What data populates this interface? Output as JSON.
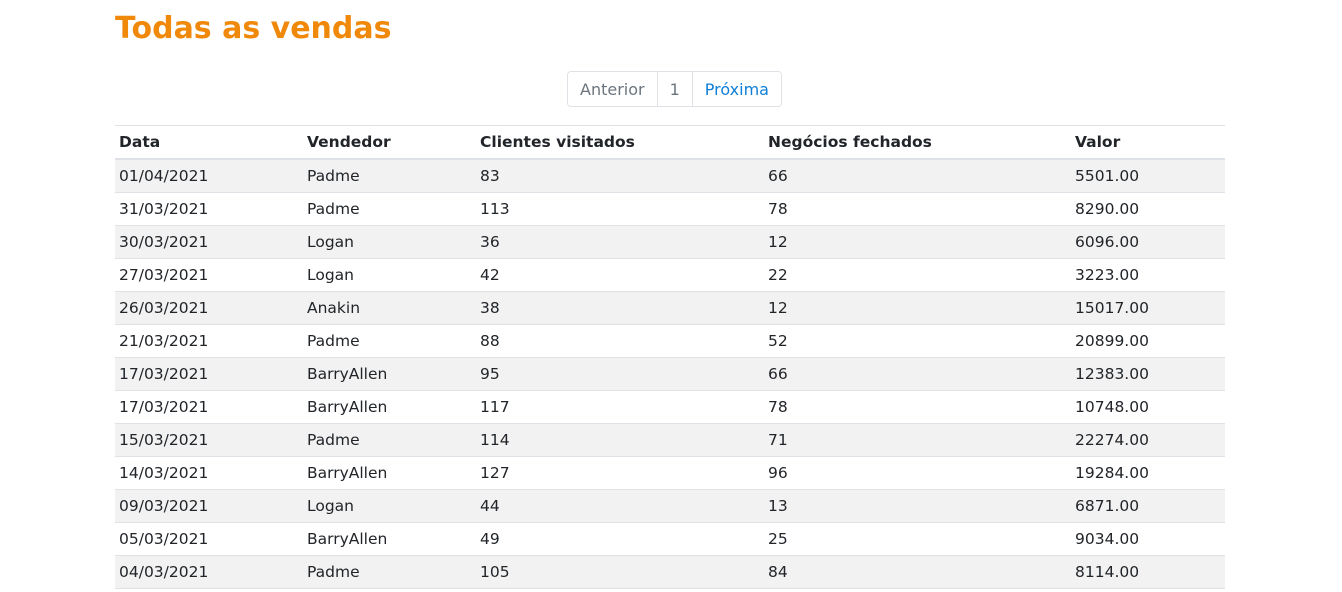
{
  "page": {
    "title": "Todas as vendas"
  },
  "pagination": {
    "previous_label": "Anterior",
    "current_page": "1",
    "next_label": "Próxima"
  },
  "table": {
    "headers": [
      "Data",
      "Vendedor",
      "Clientes visitados",
      "Negócios fechados",
      "Valor"
    ],
    "rows": [
      [
        "01/04/2021",
        "Padme",
        "83",
        "66",
        "5501.00"
      ],
      [
        "31/03/2021",
        "Padme",
        "113",
        "78",
        "8290.00"
      ],
      [
        "30/03/2021",
        "Logan",
        "36",
        "12",
        "6096.00"
      ],
      [
        "27/03/2021",
        "Logan",
        "42",
        "22",
        "3223.00"
      ],
      [
        "26/03/2021",
        "Anakin",
        "38",
        "12",
        "15017.00"
      ],
      [
        "21/03/2021",
        "Padme",
        "88",
        "52",
        "20899.00"
      ],
      [
        "17/03/2021",
        "BarryAllen",
        "95",
        "66",
        "12383.00"
      ],
      [
        "17/03/2021",
        "BarryAllen",
        "117",
        "78",
        "10748.00"
      ],
      [
        "15/03/2021",
        "Padme",
        "114",
        "71",
        "22274.00"
      ],
      [
        "14/03/2021",
        "BarryAllen",
        "127",
        "96",
        "19284.00"
      ],
      [
        "09/03/2021",
        "Logan",
        "44",
        "13",
        "6871.00"
      ],
      [
        "05/03/2021",
        "BarryAllen",
        "49",
        "25",
        "9034.00"
      ],
      [
        "04/03/2021",
        "Padme",
        "105",
        "84",
        "8114.00"
      ]
    ]
  },
  "colors": {
    "title": "#f0880a",
    "link": "#0d7fd9",
    "stripe": "#f2f2f2",
    "border": "#dee2e6"
  }
}
